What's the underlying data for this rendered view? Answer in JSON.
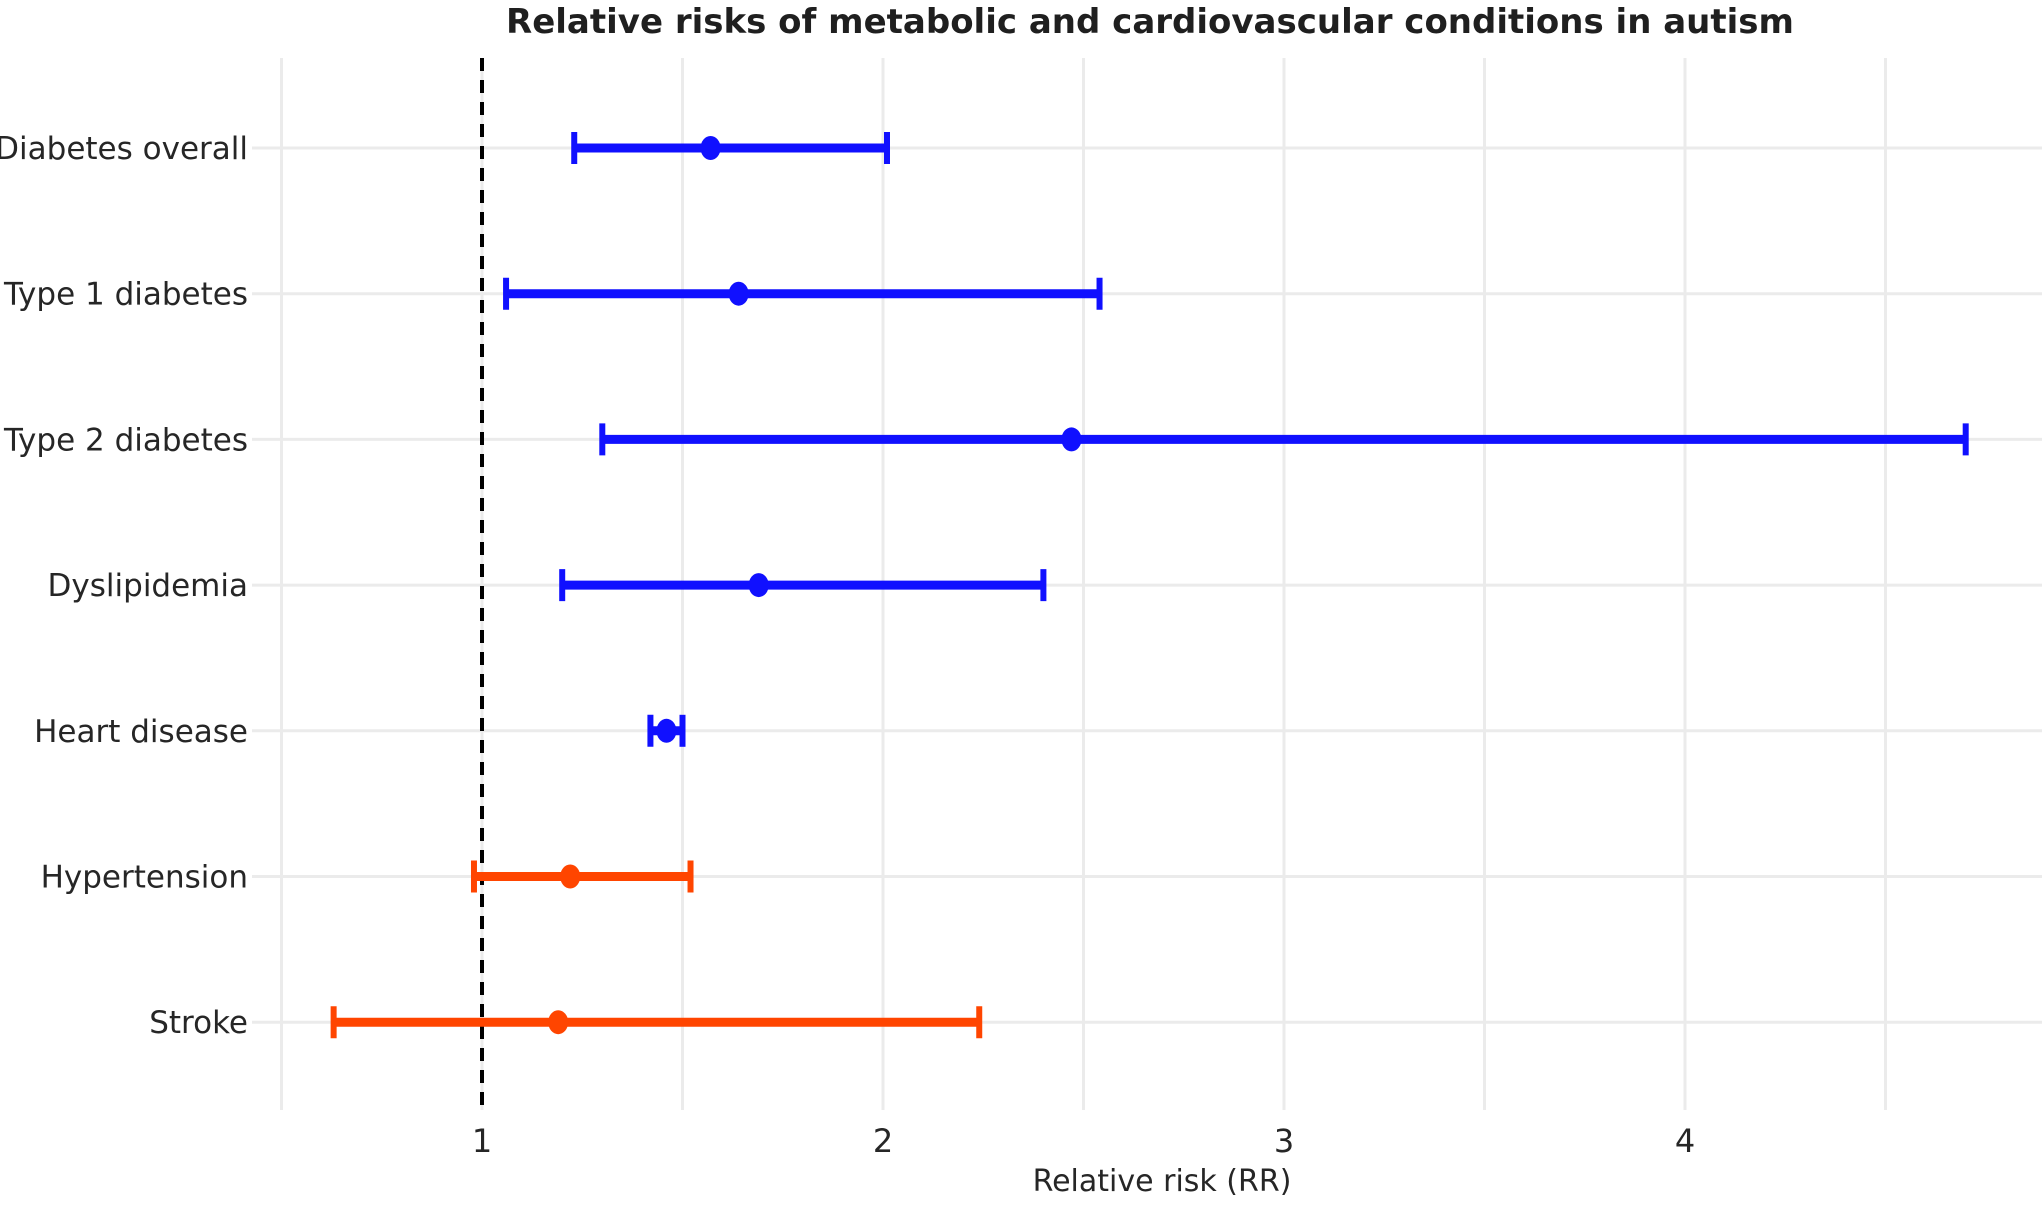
{
  "chart_data": {
    "type": "scatter",
    "subtype": "horizontal-forest-plot-with-error-bars",
    "title": "Relative risks of metabolic and cardiovascular conditions in autism",
    "xlabel": "Relative risk (RR)",
    "ylabel": "",
    "xlim": [
      0.47,
      4.89
    ],
    "xticks": [
      1,
      2,
      3,
      4
    ],
    "gridline_interval": 0.5,
    "gridline_min": 0.5,
    "gridline_max": 4.5,
    "reference_line_x": 1,
    "reference_line_style": "dashed-black-vertical",
    "grid": true,
    "legend": "none",
    "categories": [
      "Diabetes overall",
      "Type 1 diabetes",
      "Type 2 diabetes",
      "Dyslipidemia",
      "Heart disease",
      "Hypertension",
      "Stroke"
    ],
    "rows": [
      {
        "label": "Diabetes overall",
        "rr": 1.57,
        "ci_low": 1.23,
        "ci_high": 2.01,
        "group": "elevated"
      },
      {
        "label": "Type 1 diabetes",
        "rr": 1.64,
        "ci_low": 1.06,
        "ci_high": 2.54,
        "group": "elevated"
      },
      {
        "label": "Type 2 diabetes",
        "rr": 2.47,
        "ci_low": 1.3,
        "ci_high": 4.7,
        "group": "elevated"
      },
      {
        "label": "Dyslipidemia",
        "rr": 1.69,
        "ci_low": 1.2,
        "ci_high": 2.4,
        "group": "elevated"
      },
      {
        "label": "Heart disease",
        "rr": 1.46,
        "ci_low": 1.42,
        "ci_high": 1.5,
        "group": "elevated"
      },
      {
        "label": "Hypertension",
        "rr": 1.22,
        "ci_low": 0.98,
        "ci_high": 1.52,
        "group": "non_significant"
      },
      {
        "label": "Stroke",
        "rr": 1.19,
        "ci_low": 0.63,
        "ci_high": 2.24,
        "group": "non_significant"
      }
    ],
    "colors": {
      "elevated": "#1010ff",
      "non_significant": "#ff4500",
      "gridline": "#ebebeb",
      "reference_line": "#000000",
      "text": "#262626",
      "title_text": "#1f1f1f"
    }
  }
}
